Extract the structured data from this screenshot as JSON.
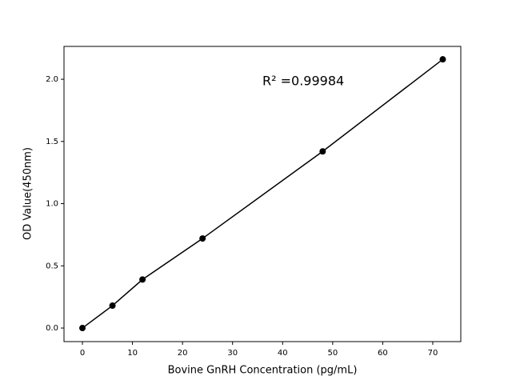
{
  "chart_data": {
    "type": "line",
    "x_label": "Bovine GnRH Concentration (pg/mL)",
    "y_label": "OD Value(450nm)",
    "annotation": "R² =0.99984",
    "x": [
      0,
      6,
      12,
      24,
      48,
      72
    ],
    "series": [
      {
        "color": "#000000",
        "values": [
          0.0,
          0.18,
          0.39,
          0.72,
          1.42,
          2.16
        ]
      }
    ],
    "markers": true,
    "xlim": [
      -3.68,
      75.6
    ],
    "ylim": [
      -0.109,
      2.264
    ],
    "xticks": [
      0,
      10,
      20,
      30,
      40,
      50,
      60,
      70
    ],
    "yticks": [
      {
        "value": 0,
        "label": "0.0"
      },
      0.5,
      {
        "value": 1,
        "label": "1.0"
      },
      1.5,
      {
        "value": 2,
        "label": "2.0"
      }
    ]
  }
}
